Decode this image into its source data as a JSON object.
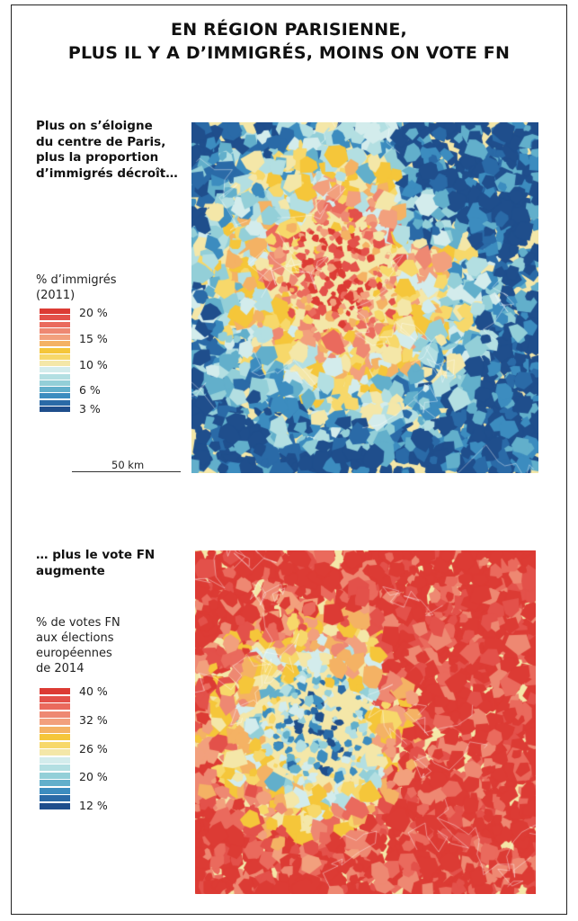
{
  "title": {
    "line1": "EN RÉGION PARISIENNE,",
    "line2": "PLUS IL Y A D’IMMIGRÉS, MOINS ON VOTE FN"
  },
  "panel1": {
    "intro": [
      "Plus on s’éloigne",
      "du centre de Paris,",
      "plus la proportion",
      "d’immigrés décroît…"
    ],
    "legend_title": [
      "% d’immigrés",
      "(2011)"
    ],
    "legend_ticks": [
      "20 %",
      "15 %",
      "10 %",
      "6 %",
      "3 %"
    ],
    "legend_colors": [
      "#dc3b34",
      "#e3514a",
      "#ea6a5d",
      "#ee8872",
      "#f2a07d",
      "#f4b264",
      "#f5c63a",
      "#f7d86a",
      "#f4e7a8",
      "#d3ecec",
      "#b3dfe2",
      "#93cfd8",
      "#62afcb",
      "#3c8cbf",
      "#2a6aa7",
      "#1f4e8c"
    ],
    "scale_label": "50 km"
  },
  "panel2": {
    "intro": [
      "… plus le vote FN",
      "augmente"
    ],
    "legend_title": [
      "% de votes FN",
      "aux élections",
      "européennes",
      "de 2014"
    ],
    "legend_ticks": [
      "40 %",
      "32 %",
      "26 %",
      "20 %",
      "12 %"
    ],
    "legend_colors": [
      "#dc3b34",
      "#e3514a",
      "#ea6a5d",
      "#ee8872",
      "#f2a07d",
      "#f4b264",
      "#f5c63a",
      "#f7d86a",
      "#f4e7a8",
      "#d3ecec",
      "#b3dfe2",
      "#93cfd8",
      "#62afcb",
      "#3c8cbf",
      "#2a6aa7",
      "#1f4e8c"
    ]
  }
}
